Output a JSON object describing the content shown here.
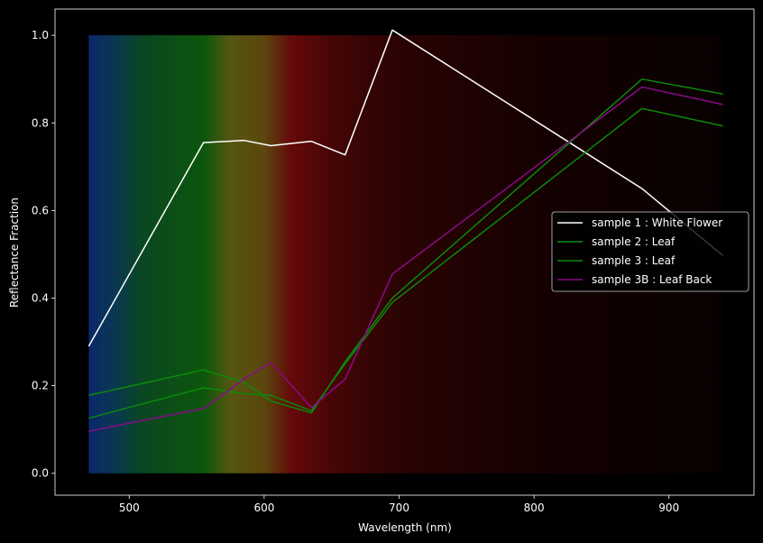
{
  "chart_data": {
    "type": "line",
    "title": "",
    "xlabel": "Wavelength (nm)",
    "ylabel": "Reflectance Fraction",
    "xlim": [
      445,
      963
    ],
    "ylim": [
      -0.05,
      1.06
    ],
    "xticks": [
      500,
      600,
      700,
      800,
      900
    ],
    "yticks": [
      0.0,
      0.2,
      0.4,
      0.6,
      0.8,
      1.0
    ],
    "ytick_labels": [
      "0.0",
      "0.2",
      "0.4",
      "0.6",
      "0.8",
      "1.0"
    ],
    "grid": false,
    "legend_position": "center-right",
    "background_color": "#000000",
    "spectrum_background": {
      "x_start": 470,
      "x_end": 940,
      "y_top": 1.0,
      "stops": [
        {
          "wavelength": 470,
          "color": "#0b2a6e"
        },
        {
          "wavelength": 490,
          "color": "#0a3a55"
        },
        {
          "wavelength": 510,
          "color": "#0b4a22"
        },
        {
          "wavelength": 555,
          "color": "#0d5a0d"
        },
        {
          "wavelength": 575,
          "color": "#5a5a12"
        },
        {
          "wavelength": 600,
          "color": "#5e4a0e"
        },
        {
          "wavelength": 620,
          "color": "#6a0a0a"
        },
        {
          "wavelength": 650,
          "color": "#4a0606"
        },
        {
          "wavelength": 700,
          "color": "#2a0303"
        },
        {
          "wavelength": 800,
          "color": "#160101"
        },
        {
          "wavelength": 940,
          "color": "#080101"
        }
      ]
    },
    "series": [
      {
        "name": "sample 1 : White Flower",
        "color": "#ffffff",
        "x": [
          470,
          555,
          585,
          605,
          635,
          660,
          695,
          880,
          940
        ],
        "y": [
          0.29,
          0.755,
          0.76,
          0.748,
          0.758,
          0.727,
          1.012,
          0.65,
          0.497
        ]
      },
      {
        "name": "sample 2 : Leaf",
        "color": "#0a8a0a",
        "x": [
          470,
          555,
          585,
          605,
          635,
          660,
          695,
          880,
          940
        ],
        "y": [
          0.178,
          0.236,
          0.208,
          0.165,
          0.138,
          0.255,
          0.4,
          0.9,
          0.866
        ]
      },
      {
        "name": "sample 3 : Leaf",
        "color": "#0a8a0a",
        "x": [
          470,
          555,
          585,
          605,
          635,
          660,
          695,
          880,
          940
        ],
        "y": [
          0.126,
          0.195,
          0.182,
          0.178,
          0.143,
          0.25,
          0.39,
          0.833,
          0.793
        ]
      },
      {
        "name": "sample 3B : Leaf Back",
        "color": "#8a0a8a",
        "x": [
          470,
          555,
          585,
          605,
          635,
          660,
          695,
          880,
          940
        ],
        "y": [
          0.096,
          0.148,
          0.215,
          0.253,
          0.15,
          0.215,
          0.455,
          0.882,
          0.842
        ]
      }
    ]
  }
}
